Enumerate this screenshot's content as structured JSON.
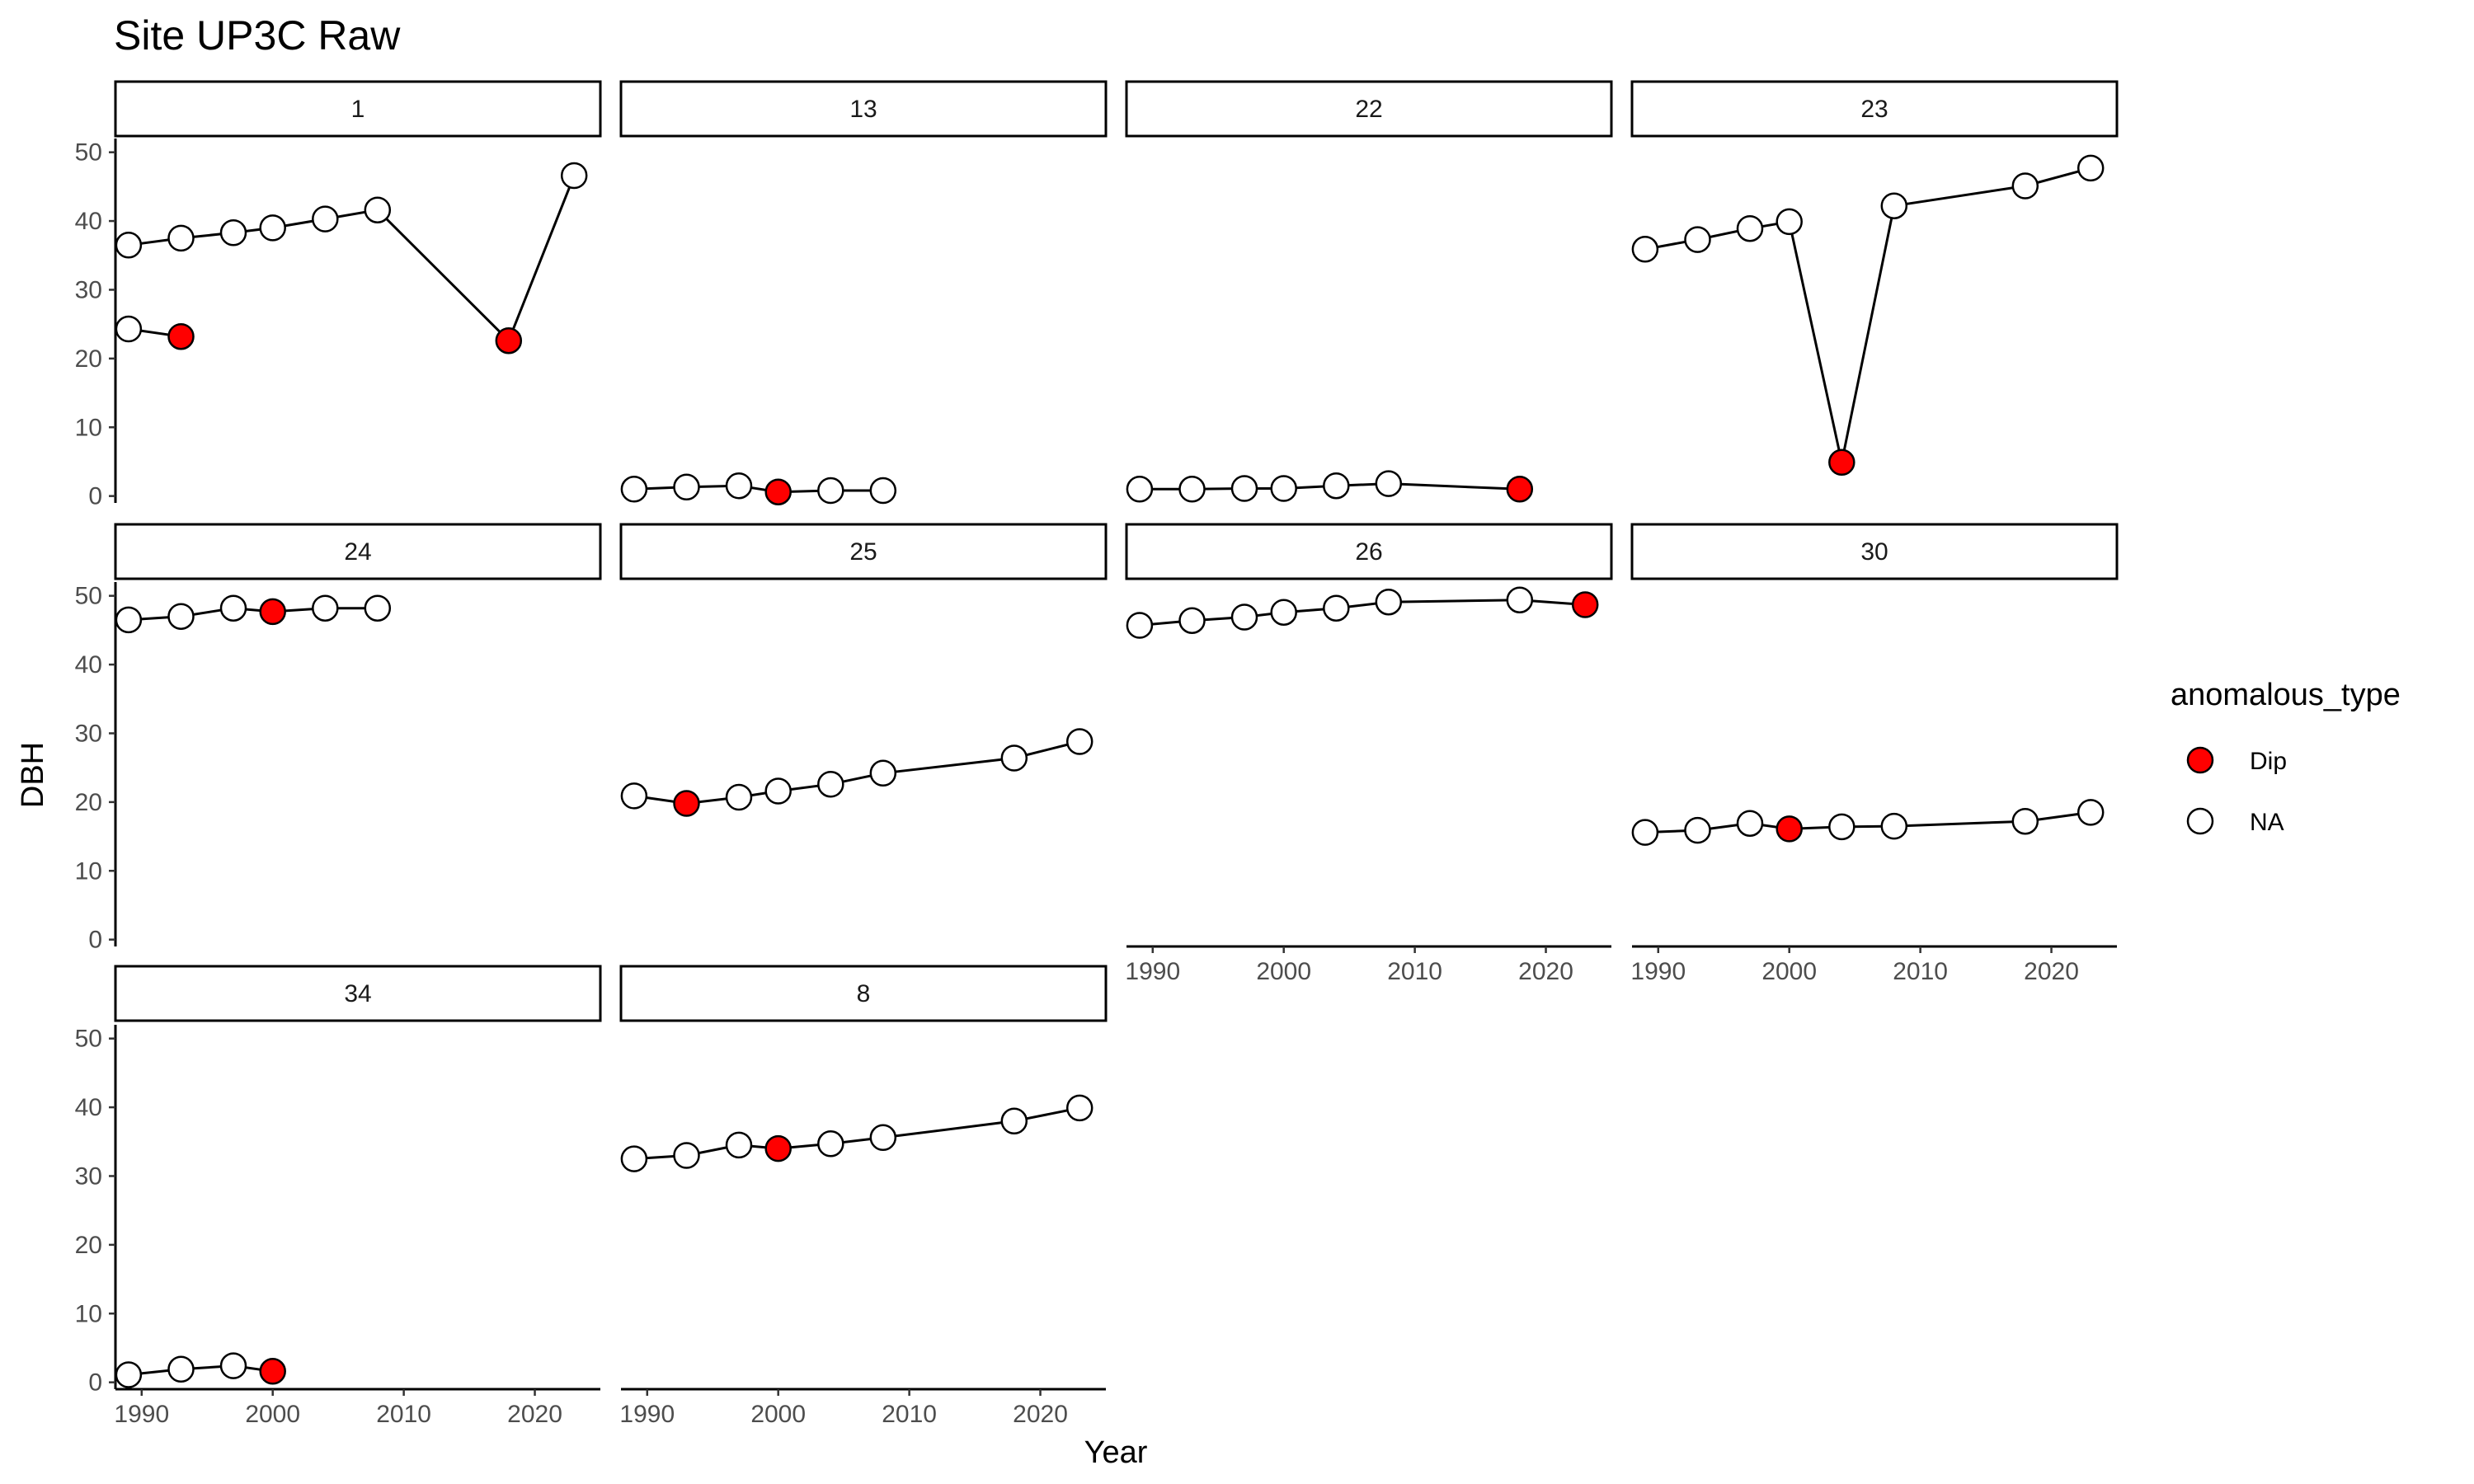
{
  "chart_data": {
    "type": "scatter",
    "title": "Site UP3C Raw",
    "xlabel": "Year",
    "ylabel": "DBH",
    "xlim": [
      1988,
      2025
    ],
    "ylim": [
      -1,
      52
    ],
    "x_ticks": [
      1990,
      2000,
      2010,
      2020
    ],
    "y_ticks": [
      0,
      10,
      20,
      30,
      40,
      50
    ],
    "grid": false,
    "facet_layout": {
      "rows": 3,
      "cols": 4
    },
    "legend": {
      "title": "anomalous_type",
      "position": "right",
      "entries": [
        {
          "label": "Dip",
          "fill": "#ff0000"
        },
        {
          "label": "NA",
          "fill": "#ffffff"
        }
      ]
    },
    "colors": {
      "dip": "#ff0000",
      "normal": "#ffffff",
      "stroke": "#000000",
      "line": "#000000"
    },
    "panels": [
      {
        "label": "1",
        "paths": [
          [
            [
              1989,
              24.3
            ],
            [
              1993,
              23.2
            ]
          ],
          [
            [
              1989,
              36.5
            ],
            [
              1993,
              37.5
            ],
            [
              1997,
              38.3
            ],
            [
              2000,
              39.0
            ],
            [
              2004,
              40.3
            ],
            [
              2008,
              41.6
            ],
            [
              2018,
              22.6
            ],
            [
              2023,
              46.6
            ]
          ]
        ],
        "points": [
          {
            "x": 1989,
            "y": 24.3,
            "type": "NA"
          },
          {
            "x": 1993,
            "y": 23.2,
            "type": "Dip"
          },
          {
            "x": 1989,
            "y": 36.5,
            "type": "NA"
          },
          {
            "x": 1993,
            "y": 37.5,
            "type": "NA"
          },
          {
            "x": 1997,
            "y": 38.3,
            "type": "NA"
          },
          {
            "x": 2000,
            "y": 39.0,
            "type": "NA"
          },
          {
            "x": 2004,
            "y": 40.3,
            "type": "NA"
          },
          {
            "x": 2008,
            "y": 41.6,
            "type": "NA"
          },
          {
            "x": 2018,
            "y": 22.6,
            "type": "Dip"
          },
          {
            "x": 2023,
            "y": 46.6,
            "type": "NA"
          }
        ]
      },
      {
        "label": "13",
        "paths": [
          [
            [
              1989,
              1.0
            ],
            [
              1993,
              1.3
            ],
            [
              1997,
              1.5
            ],
            [
              2000,
              0.6
            ],
            [
              2004,
              0.8
            ],
            [
              2008,
              0.8
            ]
          ]
        ],
        "points": [
          {
            "x": 1989,
            "y": 1.0,
            "type": "NA"
          },
          {
            "x": 1993,
            "y": 1.3,
            "type": "NA"
          },
          {
            "x": 1997,
            "y": 1.5,
            "type": "NA"
          },
          {
            "x": 2000,
            "y": 0.6,
            "type": "Dip"
          },
          {
            "x": 2004,
            "y": 0.8,
            "type": "NA"
          },
          {
            "x": 2008,
            "y": 0.8,
            "type": "NA"
          }
        ]
      },
      {
        "label": "22",
        "paths": [
          [
            [
              1989,
              1.0
            ],
            [
              1993,
              1.0
            ],
            [
              1997,
              1.1
            ],
            [
              2000,
              1.1
            ],
            [
              2004,
              1.5
            ],
            [
              2008,
              1.8
            ],
            [
              2018,
              1.0
            ]
          ]
        ],
        "points": [
          {
            "x": 1989,
            "y": 1.0,
            "type": "NA"
          },
          {
            "x": 1993,
            "y": 1.0,
            "type": "NA"
          },
          {
            "x": 1997,
            "y": 1.1,
            "type": "NA"
          },
          {
            "x": 2000,
            "y": 1.1,
            "type": "NA"
          },
          {
            "x": 2004,
            "y": 1.5,
            "type": "NA"
          },
          {
            "x": 2008,
            "y": 1.8,
            "type": "NA"
          },
          {
            "x": 2018,
            "y": 1.0,
            "type": "Dip"
          }
        ]
      },
      {
        "label": "23",
        "paths": [
          [
            [
              1989,
              35.9
            ],
            [
              1993,
              37.3
            ],
            [
              1997,
              38.9
            ],
            [
              2000,
              39.9
            ],
            [
              2004,
              4.9
            ],
            [
              2008,
              42.2
            ],
            [
              2018,
              45.1
            ],
            [
              2023,
              47.7
            ]
          ]
        ],
        "points": [
          {
            "x": 1989,
            "y": 35.9,
            "type": "NA"
          },
          {
            "x": 1993,
            "y": 37.3,
            "type": "NA"
          },
          {
            "x": 1997,
            "y": 38.9,
            "type": "NA"
          },
          {
            "x": 2000,
            "y": 39.9,
            "type": "NA"
          },
          {
            "x": 2004,
            "y": 4.9,
            "type": "Dip"
          },
          {
            "x": 2008,
            "y": 42.2,
            "type": "NA"
          },
          {
            "x": 2018,
            "y": 45.1,
            "type": "NA"
          },
          {
            "x": 2023,
            "y": 47.7,
            "type": "NA"
          }
        ]
      },
      {
        "label": "24",
        "paths": [
          [
            [
              1989,
              46.5
            ],
            [
              1993,
              47.0
            ],
            [
              1997,
              48.2
            ],
            [
              2000,
              47.7
            ],
            [
              2004,
              48.2
            ],
            [
              2008,
              48.2
            ]
          ]
        ],
        "points": [
          {
            "x": 1989,
            "y": 46.5,
            "type": "NA"
          },
          {
            "x": 1993,
            "y": 47.0,
            "type": "NA"
          },
          {
            "x": 1997,
            "y": 48.2,
            "type": "NA"
          },
          {
            "x": 2000,
            "y": 47.7,
            "type": "Dip"
          },
          {
            "x": 2004,
            "y": 48.2,
            "type": "NA"
          },
          {
            "x": 2008,
            "y": 48.2,
            "type": "NA"
          }
        ]
      },
      {
        "label": "25",
        "paths": [
          [
            [
              1989,
              20.9
            ],
            [
              1993,
              19.8
            ],
            [
              1997,
              20.7
            ],
            [
              2000,
              21.6
            ],
            [
              2004,
              22.6
            ],
            [
              2008,
              24.2
            ],
            [
              2018,
              26.4
            ],
            [
              2023,
              28.8
            ]
          ]
        ],
        "points": [
          {
            "x": 1989,
            "y": 20.9,
            "type": "NA"
          },
          {
            "x": 1993,
            "y": 19.8,
            "type": "Dip"
          },
          {
            "x": 1997,
            "y": 20.7,
            "type": "NA"
          },
          {
            "x": 2000,
            "y": 21.6,
            "type": "NA"
          },
          {
            "x": 2004,
            "y": 22.6,
            "type": "NA"
          },
          {
            "x": 2008,
            "y": 24.2,
            "type": "NA"
          },
          {
            "x": 2018,
            "y": 26.4,
            "type": "NA"
          },
          {
            "x": 2023,
            "y": 28.8,
            "type": "NA"
          }
        ]
      },
      {
        "label": "26",
        "paths": [
          [
            [
              1989,
              45.7
            ],
            [
              1993,
              46.4
            ],
            [
              1997,
              46.9
            ],
            [
              2000,
              47.6
            ],
            [
              2004,
              48.2
            ],
            [
              2008,
              49.1
            ],
            [
              2018,
              49.4
            ],
            [
              2023,
              48.7
            ]
          ]
        ],
        "points": [
          {
            "x": 1989,
            "y": 45.7,
            "type": "NA"
          },
          {
            "x": 1993,
            "y": 46.4,
            "type": "NA"
          },
          {
            "x": 1997,
            "y": 46.9,
            "type": "NA"
          },
          {
            "x": 2000,
            "y": 47.6,
            "type": "NA"
          },
          {
            "x": 2004,
            "y": 48.2,
            "type": "NA"
          },
          {
            "x": 2008,
            "y": 49.1,
            "type": "NA"
          },
          {
            "x": 2018,
            "y": 49.4,
            "type": "NA"
          },
          {
            "x": 2023,
            "y": 48.7,
            "type": "Dip"
          }
        ]
      },
      {
        "label": "30",
        "paths": [
          [
            [
              1989,
              15.6
            ],
            [
              1993,
              15.9
            ],
            [
              1997,
              16.9
            ],
            [
              2000,
              16.1
            ],
            [
              2004,
              16.4
            ],
            [
              2008,
              16.5
            ],
            [
              2018,
              17.2
            ],
            [
              2023,
              18.5
            ]
          ]
        ],
        "points": [
          {
            "x": 1989,
            "y": 15.6,
            "type": "NA"
          },
          {
            "x": 1993,
            "y": 15.9,
            "type": "NA"
          },
          {
            "x": 1997,
            "y": 16.9,
            "type": "NA"
          },
          {
            "x": 2000,
            "y": 16.1,
            "type": "Dip"
          },
          {
            "x": 2004,
            "y": 16.4,
            "type": "NA"
          },
          {
            "x": 2008,
            "y": 16.5,
            "type": "NA"
          },
          {
            "x": 2018,
            "y": 17.2,
            "type": "NA"
          },
          {
            "x": 2023,
            "y": 18.5,
            "type": "NA"
          }
        ]
      },
      {
        "label": "34",
        "paths": [
          [
            [
              1989,
              1.1
            ],
            [
              1993,
              1.9
            ],
            [
              1997,
              2.4
            ],
            [
              2000,
              1.6
            ]
          ]
        ],
        "points": [
          {
            "x": 1989,
            "y": 1.1,
            "type": "NA"
          },
          {
            "x": 1993,
            "y": 1.9,
            "type": "NA"
          },
          {
            "x": 1997,
            "y": 2.4,
            "type": "NA"
          },
          {
            "x": 2000,
            "y": 1.6,
            "type": "Dip"
          }
        ]
      },
      {
        "label": "8",
        "paths": [
          [
            [
              1989,
              32.5
            ],
            [
              1993,
              33.0
            ],
            [
              1997,
              34.5
            ],
            [
              2000,
              34.0
            ],
            [
              2004,
              34.7
            ],
            [
              2008,
              35.6
            ],
            [
              2018,
              38.0
            ],
            [
              2023,
              39.9
            ]
          ]
        ],
        "points": [
          {
            "x": 1989,
            "y": 32.5,
            "type": "NA"
          },
          {
            "x": 1993,
            "y": 33.0,
            "type": "NA"
          },
          {
            "x": 1997,
            "y": 34.5,
            "type": "NA"
          },
          {
            "x": 2000,
            "y": 34.0,
            "type": "Dip"
          },
          {
            "x": 2004,
            "y": 34.7,
            "type": "NA"
          },
          {
            "x": 2008,
            "y": 35.6,
            "type": "NA"
          },
          {
            "x": 2018,
            "y": 38.0,
            "type": "NA"
          },
          {
            "x": 2023,
            "y": 39.9,
            "type": "NA"
          }
        ]
      }
    ]
  }
}
